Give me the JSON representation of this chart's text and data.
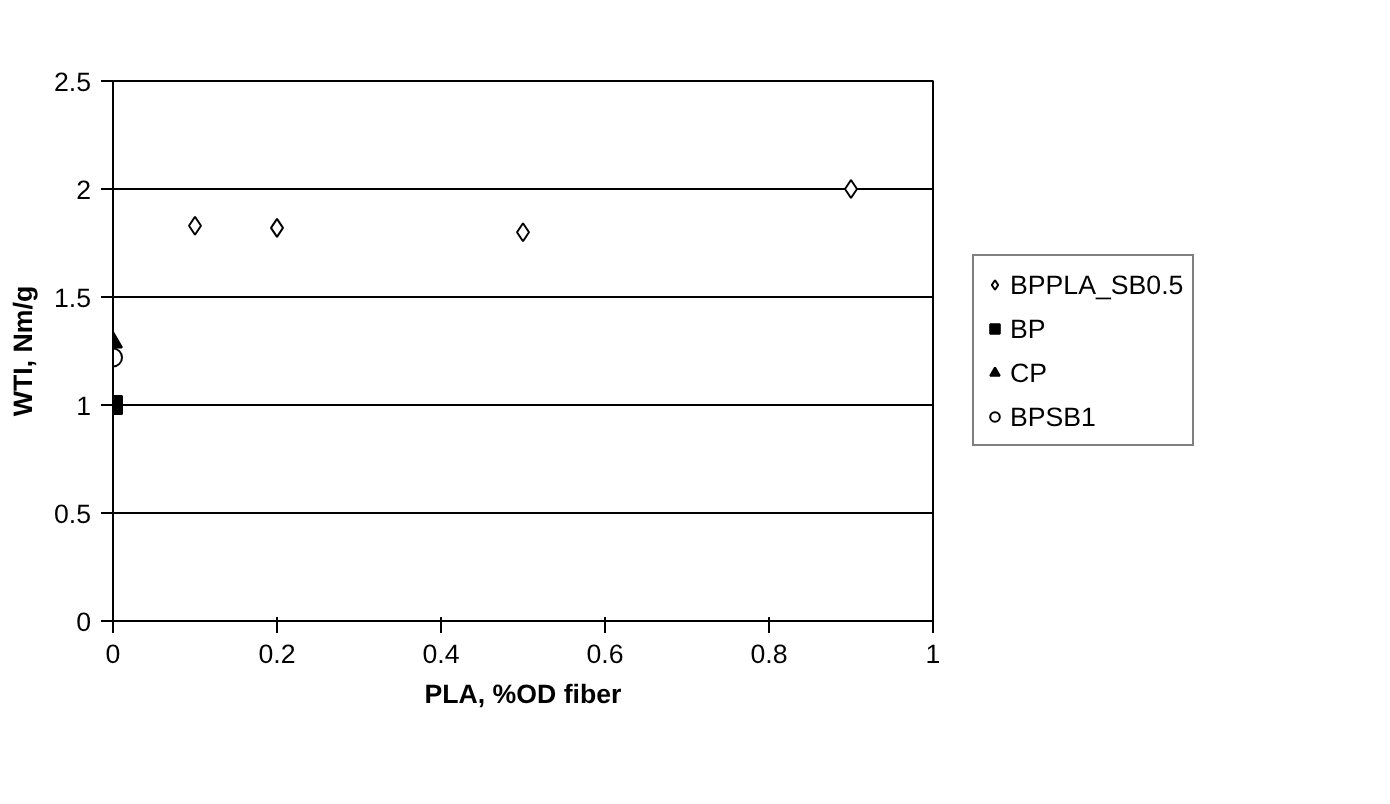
{
  "chart_data": {
    "type": "scatter",
    "xlabel": "PLA, %OD fiber",
    "ylabel": "WTI, Nm/g",
    "xlim": [
      0,
      1
    ],
    "xticks": [
      0,
      0.2,
      0.4,
      0.6,
      0.8,
      1
    ],
    "ylim": [
      0,
      2.5
    ],
    "yticks": [
      0,
      0.5,
      1,
      1.5,
      2,
      2.5
    ],
    "grid": "y",
    "legend": "right",
    "series": [
      {
        "name": "BPPLA_SB0.5",
        "color": "#000000",
        "marker": "diamond",
        "x": [
          0.1,
          0.2,
          0.5,
          0.9
        ],
        "values": [
          1.83,
          1.82,
          1.8,
          2.0
        ]
      },
      {
        "name": "BP",
        "color": "#000000",
        "marker": "square",
        "x": [
          0
        ],
        "values": [
          1.0
        ]
      },
      {
        "name": "CP",
        "color": "#000000",
        "marker": "triangle",
        "x": [
          0
        ],
        "values": [
          1.29
        ]
      },
      {
        "name": "BPSB1",
        "color": "#000000",
        "marker": "circle",
        "x": [
          0
        ],
        "values": [
          1.22
        ]
      }
    ]
  }
}
